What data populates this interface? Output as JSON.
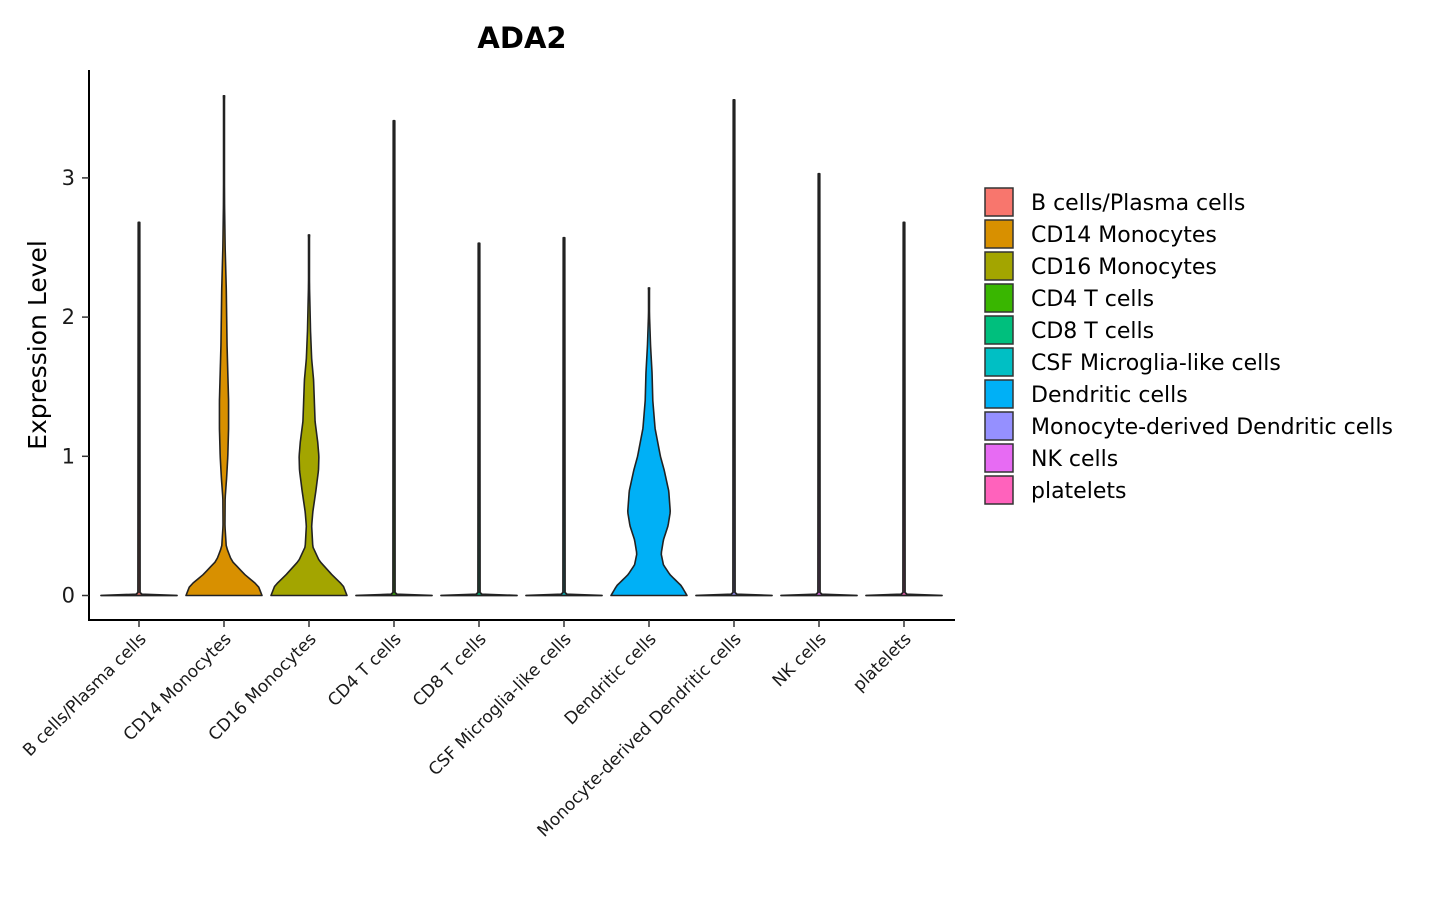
{
  "chart_data": {
    "type": "violin",
    "title": "ADA2",
    "xlabel": "",
    "ylabel": "Expression Level",
    "ylim": [
      -0.18,
      3.8
    ],
    "yticks": [
      0,
      1,
      2,
      3
    ],
    "categories": [
      "B cells/Plasma cells",
      "CD14 Monocytes",
      "CD16 Monocytes",
      "CD4 T cells",
      "CD8 T cells",
      "CSF Microglia-like cells",
      "Dendritic cells",
      "Monocyte-derived Dendritic cells",
      "NK cells",
      "platelets"
    ],
    "colors": [
      "#F8766D",
      "#D89000",
      "#A3A500",
      "#39B600",
      "#00BF7D",
      "#00BFC4",
      "#00B0F6",
      "#9590FF",
      "#E76BF3",
      "#FF62BC"
    ],
    "max_values": [
      2.68,
      3.59,
      2.59,
      3.41,
      2.53,
      2.57,
      2.21,
      3.56,
      3.03,
      2.68
    ],
    "legend": {
      "position": "right",
      "entries": [
        "B cells/Plasma cells",
        "CD14 Monocytes",
        "CD16 Monocytes",
        "CD4 T cells",
        "CD8 T cells",
        "CSF Microglia-like cells",
        "Dendritic cells",
        "Monocyte-derived Dendritic cells",
        "NK cells",
        "platelets"
      ]
    },
    "density_profiles": {
      "CD14 Monocytes": [
        [
          0,
          1.0
        ],
        [
          0.07,
          0.9
        ],
        [
          0.15,
          0.55
        ],
        [
          0.25,
          0.2
        ],
        [
          0.35,
          0.06
        ],
        [
          0.5,
          0.025
        ],
        [
          0.7,
          0.03
        ],
        [
          0.85,
          0.07
        ],
        [
          1.0,
          0.1
        ],
        [
          1.2,
          0.12
        ],
        [
          1.4,
          0.12
        ],
        [
          1.6,
          0.1
        ],
        [
          1.8,
          0.08
        ],
        [
          2.0,
          0.07
        ],
        [
          2.2,
          0.06
        ],
        [
          2.5,
          0.03
        ],
        [
          2.8,
          0.015
        ],
        [
          3.2,
          0.008
        ]
      ],
      "CD16 Monocytes": [
        [
          0,
          1.0
        ],
        [
          0.07,
          0.9
        ],
        [
          0.15,
          0.6
        ],
        [
          0.25,
          0.27
        ],
        [
          0.35,
          0.1
        ],
        [
          0.5,
          0.07
        ],
        [
          0.6,
          0.1
        ],
        [
          0.75,
          0.18
        ],
        [
          0.9,
          0.25
        ],
        [
          1.0,
          0.26
        ],
        [
          1.1,
          0.23
        ],
        [
          1.25,
          0.16
        ],
        [
          1.4,
          0.14
        ],
        [
          1.55,
          0.12
        ],
        [
          1.7,
          0.07
        ],
        [
          1.9,
          0.04
        ],
        [
          2.2,
          0.015
        ]
      ],
      "Dendritic cells": [
        [
          0,
          1.0
        ],
        [
          0.07,
          0.85
        ],
        [
          0.15,
          0.55
        ],
        [
          0.22,
          0.38
        ],
        [
          0.3,
          0.32
        ],
        [
          0.4,
          0.38
        ],
        [
          0.5,
          0.5
        ],
        [
          0.6,
          0.56
        ],
        [
          0.75,
          0.52
        ],
        [
          0.9,
          0.4
        ],
        [
          1.0,
          0.3
        ],
        [
          1.2,
          0.16
        ],
        [
          1.4,
          0.1
        ],
        [
          1.6,
          0.08
        ],
        [
          1.8,
          0.04
        ],
        [
          2.0,
          0.015
        ]
      ]
    }
  }
}
